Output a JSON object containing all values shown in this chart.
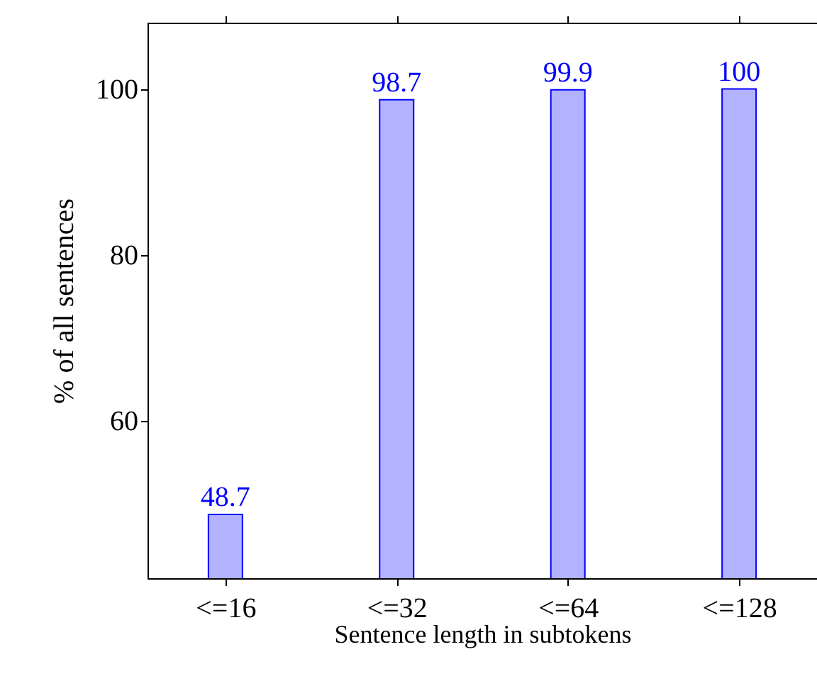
{
  "chart_data": {
    "type": "bar",
    "xlabel": "Sentence length in subtokens",
    "ylabel": "% of all sentences",
    "categories": [
      "<=16",
      "<=32",
      "<=64",
      "<=128"
    ],
    "series": [
      {
        "color": "#0000ff",
        "values": [
          48.7,
          98.7,
          99.9,
          100
        ]
      }
    ],
    "ylim": [
      41,
      108
    ],
    "yticks": [
      60,
      80,
      100
    ],
    "data_labels": true
  }
}
